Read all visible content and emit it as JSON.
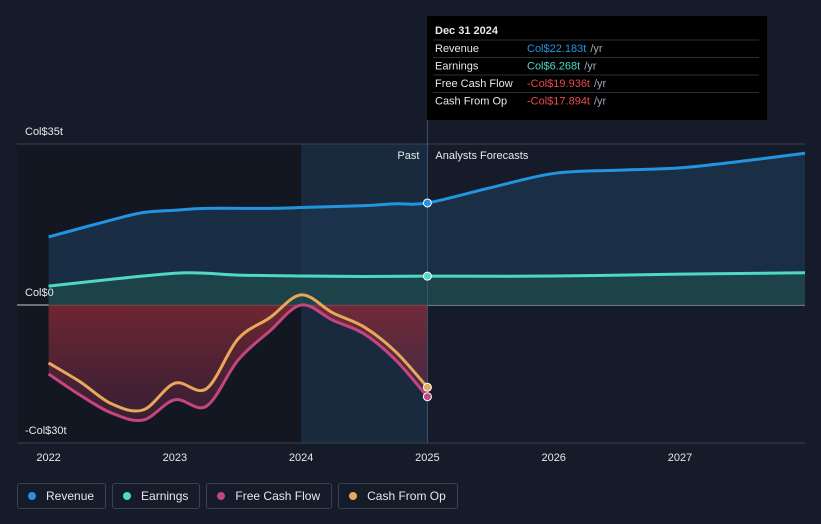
{
  "chart_data": {
    "type": "line",
    "xlim": [
      2021.75,
      2027.99
    ],
    "xticks": [
      2022,
      2023,
      2024,
      2025,
      2026,
      2027
    ],
    "ylim": [
      -30,
      35
    ],
    "yticks": [
      {
        "value": 35,
        "label": "Col$35t"
      },
      {
        "value": 0,
        "label": "Col$0"
      },
      {
        "value": -30,
        "label": "-Col$30t"
      }
    ],
    "past_label": "Past",
    "forecast_label": "Analysts Forecasts",
    "forecast_start": 2025,
    "highlight_start": 2024,
    "series": [
      {
        "name": "Revenue",
        "color": "#2394df",
        "area_color": "#1c3650",
        "x": [
          2022,
          2022.5,
          2022.75,
          2023,
          2023.25,
          2023.75,
          2024,
          2024.5,
          2024.75,
          2025,
          2025.5,
          2026,
          2026.5,
          2027,
          2027.5,
          2027.99
        ],
        "values": [
          14.8,
          18.5,
          20.1,
          20.6,
          21,
          21,
          21.2,
          21.6,
          22,
          22.183,
          25.5,
          28.6,
          29.3,
          29.8,
          31.3,
          33
        ]
      },
      {
        "name": "Earnings",
        "color": "#4fd8c4",
        "area_color": "#1f4a4a",
        "x": [
          2022,
          2022.5,
          2023,
          2023.25,
          2023.5,
          2024,
          2024.5,
          2025,
          2026,
          2027,
          2027.99
        ],
        "values": [
          4.1,
          5.6,
          6.9,
          6.9,
          6.5,
          6.3,
          6.2,
          6.268,
          6.3,
          6.7,
          7
        ]
      },
      {
        "name": "Free Cash Flow",
        "color": "#c4457f",
        "area_color": "#8c2a35",
        "x": [
          2022,
          2022.25,
          2022.5,
          2022.75,
          2023,
          2023.25,
          2023.5,
          2023.75,
          2024,
          2024.25,
          2024.5,
          2024.75,
          2025
        ],
        "values": [
          -15,
          -19.6,
          -23.5,
          -25,
          -20.6,
          -22,
          -12,
          -5.7,
          0,
          -3.3,
          -6.3,
          -12,
          -19.936
        ]
      },
      {
        "name": "Cash From Op",
        "color": "#e8a85a",
        "x": [
          2022,
          2022.25,
          2022.5,
          2022.75,
          2023,
          2023.25,
          2023.5,
          2023.75,
          2024,
          2024.25,
          2024.5,
          2024.75,
          2025
        ],
        "values": [
          -12.6,
          -16.7,
          -21.5,
          -22.8,
          -17,
          -18.2,
          -7.4,
          -2.8,
          2.2,
          -1.7,
          -4.8,
          -10.2,
          -17.894
        ]
      }
    ],
    "tooltip": {
      "date": "Dec 31 2024",
      "rows": [
        {
          "label": "Revenue",
          "value": "Col$22.183t",
          "suffix": "/yr",
          "color": "#2394df"
        },
        {
          "label": "Earnings",
          "value": "Col$6.268t",
          "suffix": "/yr",
          "color": "#4fd8c4"
        },
        {
          "label": "Free Cash Flow",
          "value": "-Col$19.936t",
          "suffix": "/yr",
          "color": "#e84a4a"
        },
        {
          "label": "Cash From Op",
          "value": "-Col$17.894t",
          "suffix": "/yr",
          "color": "#e84a4a"
        }
      ]
    }
  }
}
